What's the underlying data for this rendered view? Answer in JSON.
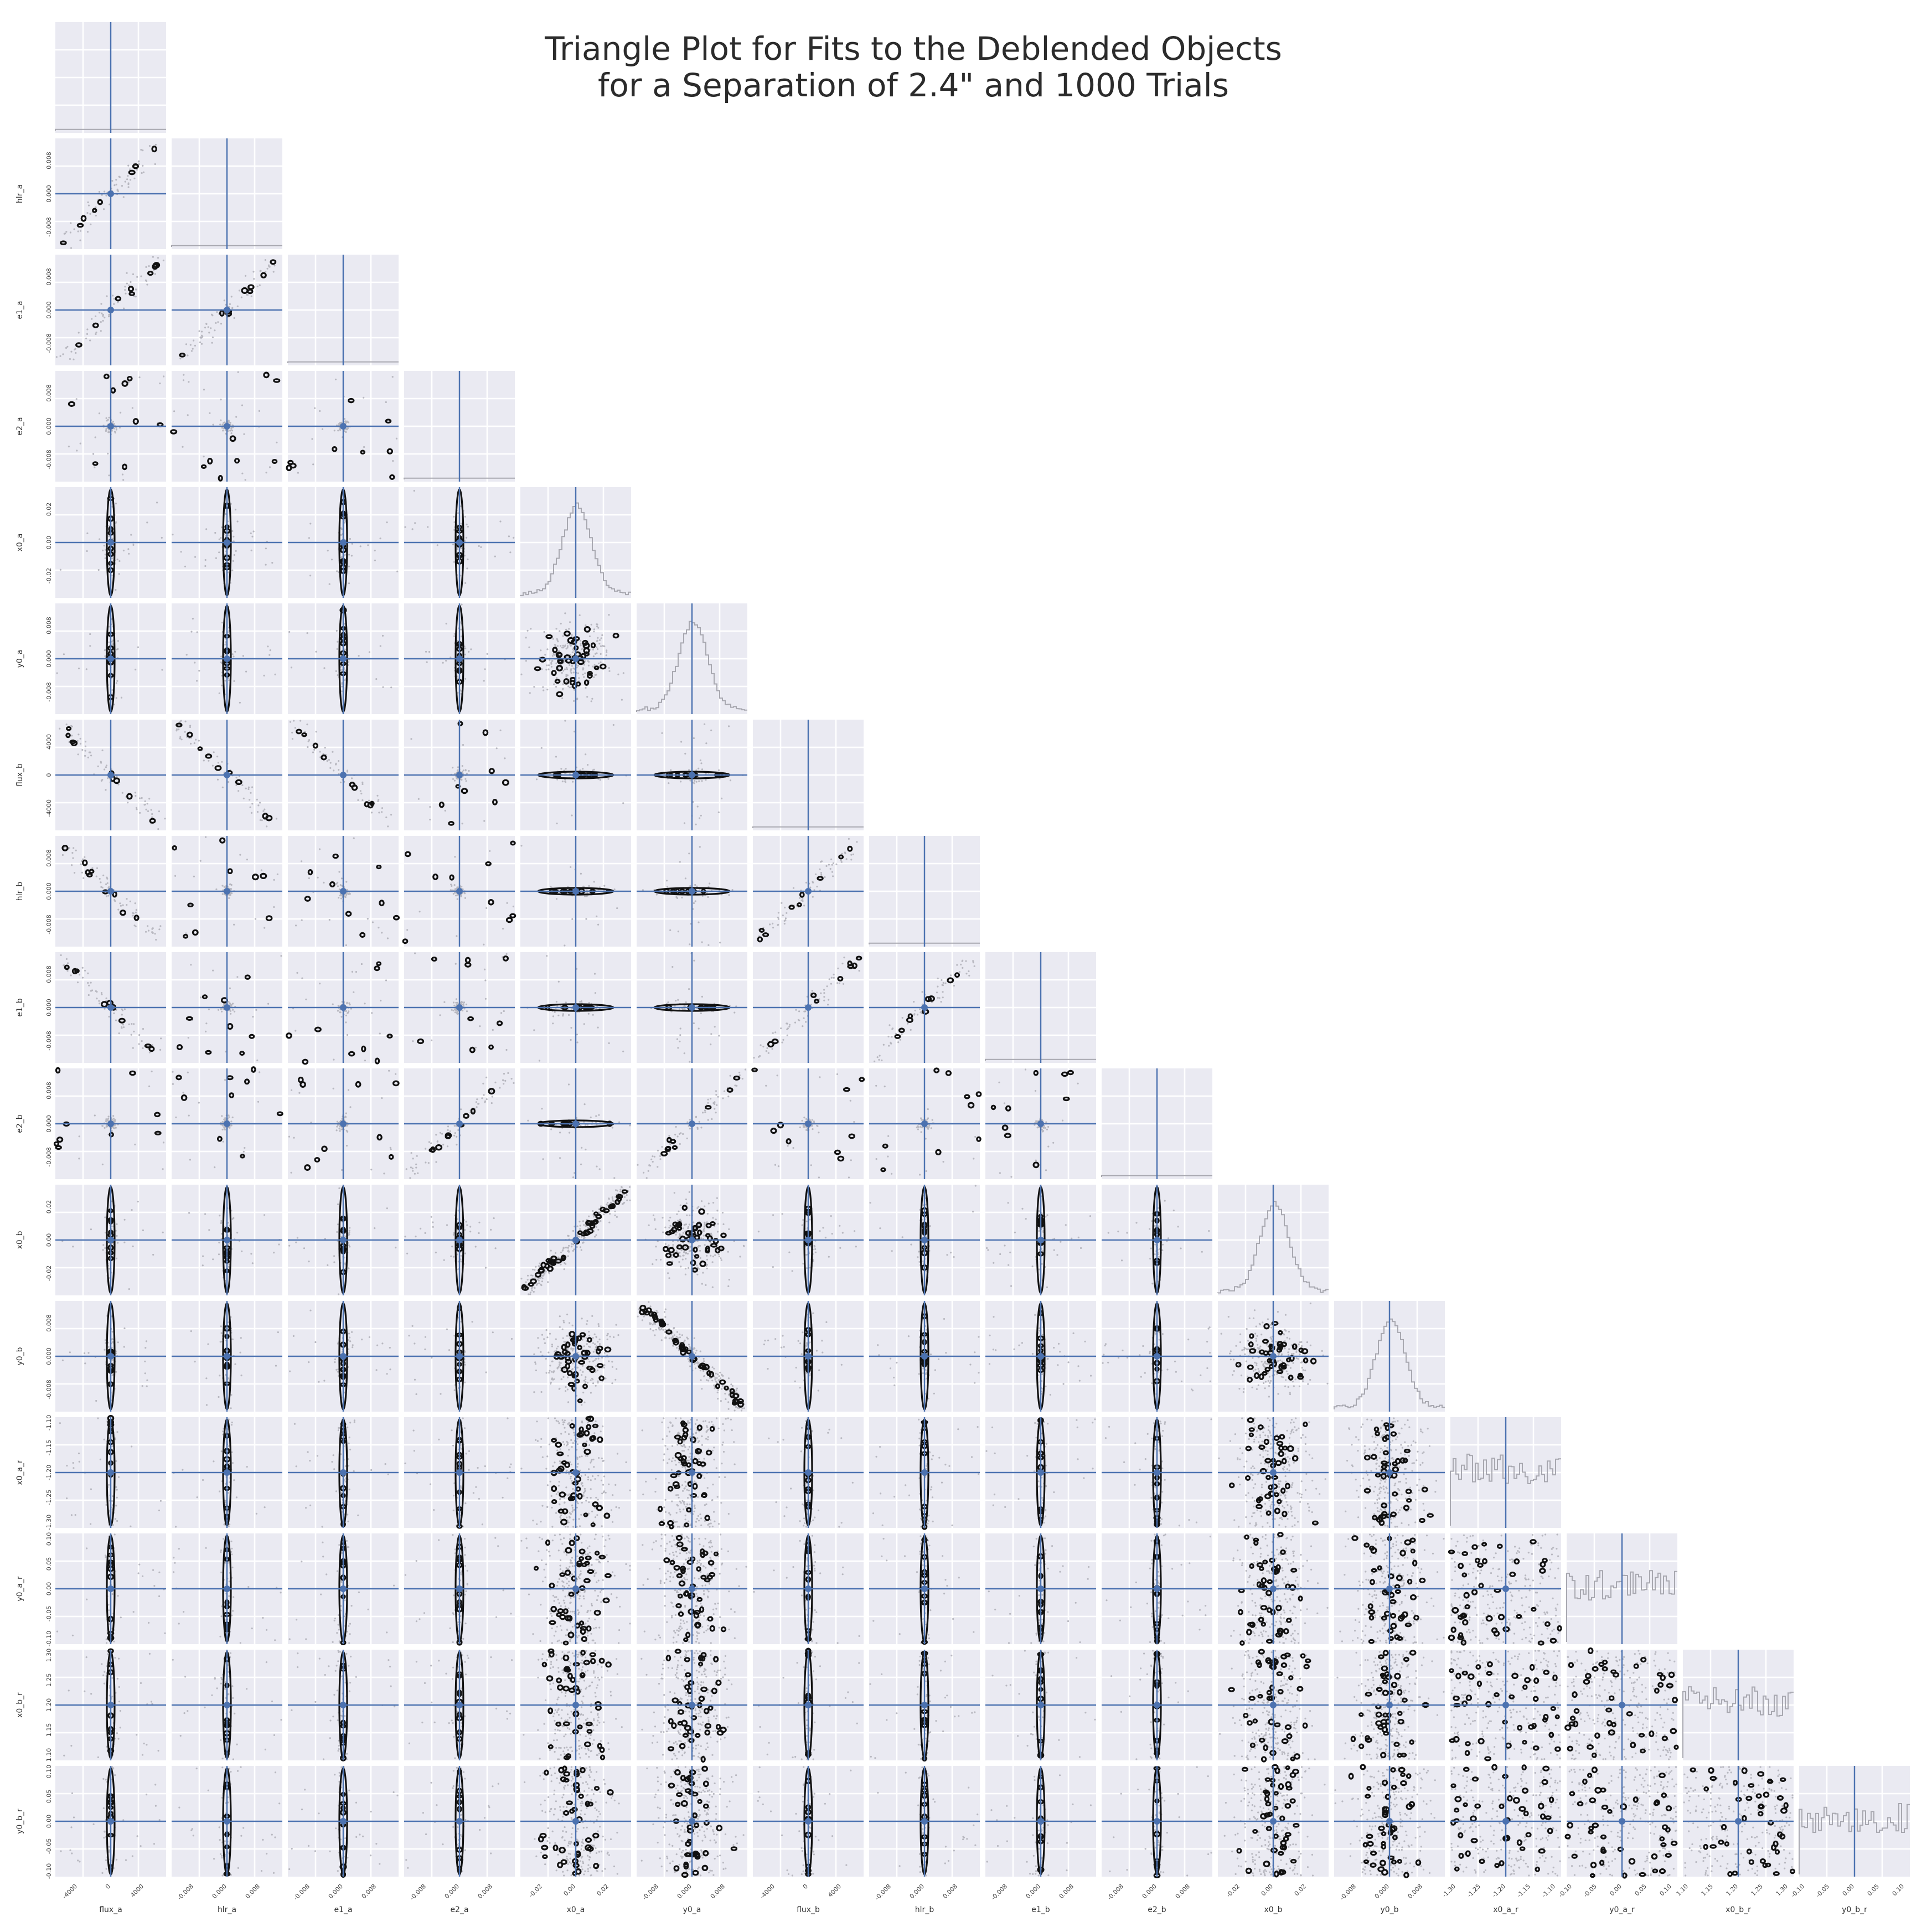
{
  "title": {
    "line1": "Triangle Plot for Fits to the Deblended Objects",
    "line2": "for a Separation of 2.4\" and 1000 Trials"
  },
  "colors": {
    "truth": "#4c72b0",
    "panel_background": "#eaeaf2",
    "contour": "#111111",
    "samples": "#b8b8c0",
    "histogram": "#a8a8b0"
  },
  "chart_data": {
    "type": "scatter",
    "layout": "corner (triangle) plot",
    "n_trials": 1000,
    "grid": true,
    "parameters": [
      {
        "name": "flux_a",
        "truth": 0,
        "range": [
          -7000,
          7000
        ],
        "ticks": [
          "-4000",
          "0",
          "4000"
        ]
      },
      {
        "name": "hlr_a",
        "truth": 0.0,
        "range": [
          -0.013,
          0.013
        ],
        "ticks": [
          "-0.008",
          "0.000",
          "0.008"
        ]
      },
      {
        "name": "e1_a",
        "truth": 0.0,
        "range": [
          -0.013,
          0.013
        ],
        "ticks": [
          "-0.008",
          "0.000",
          "0.008"
        ]
      },
      {
        "name": "e2_a",
        "truth": 0.0,
        "range": [
          -0.013,
          0.013
        ],
        "ticks": [
          "-0.008",
          "0.000",
          "0.008"
        ]
      },
      {
        "name": "x0_a",
        "truth": 0.0,
        "range": [
          -0.038,
          0.038
        ],
        "ticks": [
          "-0.02",
          "0.00",
          "0.02"
        ]
      },
      {
        "name": "y0_a",
        "truth": 0.0,
        "range": [
          -0.013,
          0.013
        ],
        "ticks": [
          "-0.008",
          "0.000",
          "0.008"
        ]
      },
      {
        "name": "flux_b",
        "truth": 0,
        "range": [
          -7000,
          7000
        ],
        "ticks": [
          "-4000",
          "0",
          "4000"
        ]
      },
      {
        "name": "hlr_b",
        "truth": 0.0,
        "range": [
          -0.013,
          0.013
        ],
        "ticks": [
          "-0.008",
          "0.000",
          "0.008"
        ]
      },
      {
        "name": "e1_b",
        "truth": 0.0,
        "range": [
          -0.013,
          0.013
        ],
        "ticks": [
          "-0.008",
          "0.000",
          "0.008"
        ]
      },
      {
        "name": "e2_b",
        "truth": 0.0,
        "range": [
          -0.013,
          0.013
        ],
        "ticks": [
          "-0.008",
          "0.000",
          "0.008"
        ]
      },
      {
        "name": "x0_b",
        "truth": 0.0,
        "range": [
          -0.038,
          0.038
        ],
        "ticks": [
          "-0.02",
          "0.00",
          "0.02"
        ]
      },
      {
        "name": "y0_b",
        "truth": 0.0,
        "range": [
          -0.013,
          0.013
        ],
        "ticks": [
          "-0.008",
          "0.000",
          "0.008"
        ]
      },
      {
        "name": "x0_a_r",
        "truth": -1.2,
        "range": [
          -1.3,
          -1.1
        ],
        "ticks": [
          "-1.30",
          "-1.25",
          "-1.20",
          "-1.15",
          "-1.10"
        ]
      },
      {
        "name": "y0_a_r",
        "truth": 0.0,
        "range": [
          -0.1,
          0.1
        ],
        "ticks": [
          "-0.10",
          "-0.05",
          "0.00",
          "0.05",
          "0.10"
        ]
      },
      {
        "name": "x0_b_r",
        "truth": 1.2,
        "range": [
          1.1,
          1.3
        ],
        "ticks": [
          "1.10",
          "1.15",
          "1.20",
          "1.25",
          "1.30"
        ]
      },
      {
        "name": "y0_b_r",
        "truth": 0.0,
        "range": [
          -0.1,
          0.1
        ],
        "ticks": [
          "-0.10",
          "-0.05",
          "0.00",
          "0.05",
          "0.10"
        ]
      }
    ],
    "correlations": [
      {
        "pair": [
          "flux_a",
          "hlr_a"
        ],
        "trend": "positive"
      },
      {
        "pair": [
          "flux_a",
          "e1_a"
        ],
        "trend": "positive"
      },
      {
        "pair": [
          "hlr_a",
          "e1_a"
        ],
        "trend": "positive"
      },
      {
        "pair": [
          "flux_a",
          "flux_b"
        ],
        "trend": "negative"
      },
      {
        "pair": [
          "hlr_a",
          "flux_b"
        ],
        "trend": "negative"
      },
      {
        "pair": [
          "e1_a",
          "flux_b"
        ],
        "trend": "negative"
      },
      {
        "pair": [
          "flux_a",
          "hlr_b"
        ],
        "trend": "negative"
      },
      {
        "pair": [
          "flux_b",
          "hlr_b"
        ],
        "trend": "positive"
      },
      {
        "pair": [
          "flux_a",
          "e1_b"
        ],
        "trend": "negative"
      },
      {
        "pair": [
          "flux_b",
          "e1_b"
        ],
        "trend": "positive"
      },
      {
        "pair": [
          "hlr_b",
          "e1_b"
        ],
        "trend": "positive"
      },
      {
        "pair": [
          "e2_a",
          "e2_b"
        ],
        "trend": "positive"
      },
      {
        "pair": [
          "y0_a",
          "e2_b"
        ],
        "trend": "positive"
      },
      {
        "pair": [
          "x0_a",
          "x0_b"
        ],
        "trend": "positive"
      },
      {
        "pair": [
          "y0_a",
          "y0_b"
        ],
        "trend": "negative"
      }
    ]
  }
}
